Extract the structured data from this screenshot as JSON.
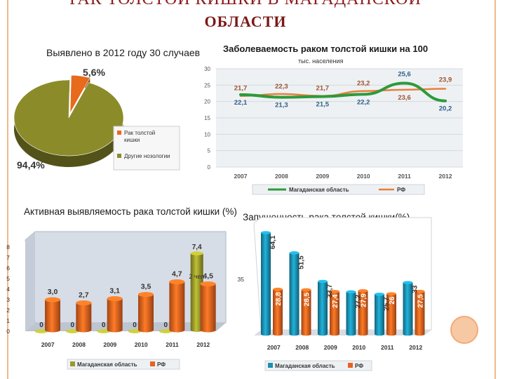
{
  "slide": {
    "title_line1": "РАК ТОЛСТОЙ КИШКИ В МАГАДАНСКОЙ",
    "title_line2": "ОБЛАСТИ"
  },
  "chart_data": [
    {
      "type": "pie",
      "title": "Выявлено в 2012 году 30 случаев",
      "slices": [
        {
          "label": "Рак толстой кишки",
          "value": 5.6,
          "value_label": "5,6%",
          "color": "#e86a1c"
        },
        {
          "label": "Другие нозологии",
          "value": 94.4,
          "value_label": "94,4%",
          "color": "#8b8b2a"
        }
      ],
      "legend_position": "right"
    },
    {
      "type": "line",
      "title": "Заболеваемость раком толстой кишки на 100",
      "subtitle": "тыс. населения",
      "categories": [
        "2007",
        "2008",
        "2009",
        "2010",
        "2011",
        "2012"
      ],
      "ylim": [
        0,
        30
      ],
      "yticks": [
        "0",
        "5",
        "10",
        "15",
        "20",
        "25",
        "30"
      ],
      "series": [
        {
          "name": "Магаданская область",
          "color": "#2e9a3c",
          "values": [
            22.1,
            21.3,
            21.5,
            22.2,
            25.6,
            20.2
          ],
          "labels": [
            "22,1",
            "21,3",
            "21,5",
            "22,2",
            "25,6",
            "20,2"
          ]
        },
        {
          "name": "РФ",
          "color": "#e8803a",
          "values": [
            21.7,
            22.3,
            21.7,
            23.2,
            23.6,
            23.9
          ],
          "labels": [
            "21,7",
            "22,3",
            "21,7",
            "23,2",
            "23,6",
            "23,9"
          ]
        }
      ],
      "grid": true,
      "legend_position": "bottom"
    },
    {
      "type": "bar",
      "title": "Активная выявляемость рака толстой кишки (%)",
      "categories": [
        "2007",
        "2008",
        "2009",
        "2010",
        "2011",
        "2012"
      ],
      "ylim": [
        0,
        8
      ],
      "yticks": [
        "0",
        "1",
        "2",
        "3",
        "4",
        "5",
        "6",
        "7",
        "8"
      ],
      "series": [
        {
          "name": "Магаданская область",
          "color": "#9a9a2a",
          "values": [
            0,
            0,
            0,
            0,
            0,
            7.4
          ],
          "labels": [
            "0",
            "0",
            "0",
            "0",
            "0",
            "7,4"
          ]
        },
        {
          "name": "РФ",
          "color": "#e8621e",
          "values": [
            3.0,
            2.7,
            3.1,
            3.5,
            4.7,
            4.5
          ],
          "labels": [
            "3,0",
            "2,7",
            "3,1",
            "3,5",
            "4,7",
            "4,5"
          ]
        }
      ],
      "annotation": "2 чел.",
      "legend_position": "bottom"
    },
    {
      "type": "bar",
      "title": "Запущенность рака толстой кишки(%)",
      "categories": [
        "2007",
        "2008",
        "2009",
        "2010",
        "2011",
        "2012"
      ],
      "ytick_label": "35",
      "series": [
        {
          "name": "Магаданская область",
          "color": "#1a8fb0",
          "values": [
            64.1,
            51.5,
            33.7,
            27.2,
            25.7,
            33
          ],
          "labels": [
            "64,1",
            "51,5",
            "33,7",
            "27,2",
            "25,7",
            "33"
          ]
        },
        {
          "name": "РФ",
          "color": "#e8621e",
          "values": [
            28.8,
            28.5,
            27.4,
            27.9,
            26,
            27.5
          ],
          "labels": [
            "28,8",
            "28,5",
            "27,4",
            "27,9",
            "26",
            "27,5"
          ]
        }
      ],
      "legend_position": "bottom"
    }
  ]
}
